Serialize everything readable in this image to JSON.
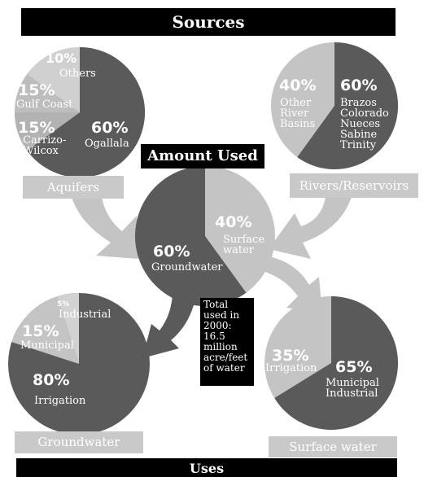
{
  "header": "Sources",
  "footer": "Uses",
  "amount_used": "Amount Used",
  "total_note": "Total used in 2000: 16.5 million acre/feet of water",
  "categories": {
    "aquifers": "Aquifers",
    "rivers": "Rivers/Reservoirs",
    "groundwater": "Groundwater",
    "surface_water": "Surface water"
  },
  "pies": {
    "aquifers": [
      {
        "pct": "60%",
        "label": "Ogallala"
      },
      {
        "pct": "15%",
        "label": "Carrizo-\nWilcox"
      },
      {
        "pct": "15%",
        "label": "Gulf Coast"
      },
      {
        "pct": "10%",
        "label": "Others"
      }
    ],
    "rivers": [
      {
        "pct": "60%",
        "label": "Brazos\nColorado\nNueces\nSabine\nTrinity"
      },
      {
        "pct": "40%",
        "label": "Other\nRiver\nBasins"
      }
    ],
    "amount": [
      {
        "pct": "60%",
        "label": "Groundwater"
      },
      {
        "pct": "40%",
        "label": "Surface\nwater"
      }
    ],
    "groundwater_uses": [
      {
        "pct": "80%",
        "label": "Irrigation"
      },
      {
        "pct": "15%",
        "label": "Municipal"
      },
      {
        "pct": "5%",
        "label": "Industrial"
      }
    ],
    "surface_uses": [
      {
        "pct": "65%",
        "label": "Municipal\nIndustrial"
      },
      {
        "pct": "35%",
        "label": "Irrigation"
      }
    ]
  },
  "colors": {
    "dark": "#5a5a5a",
    "light": "#c4c4c4",
    "mid": "#9a9a9a",
    "black": "#000000"
  }
}
